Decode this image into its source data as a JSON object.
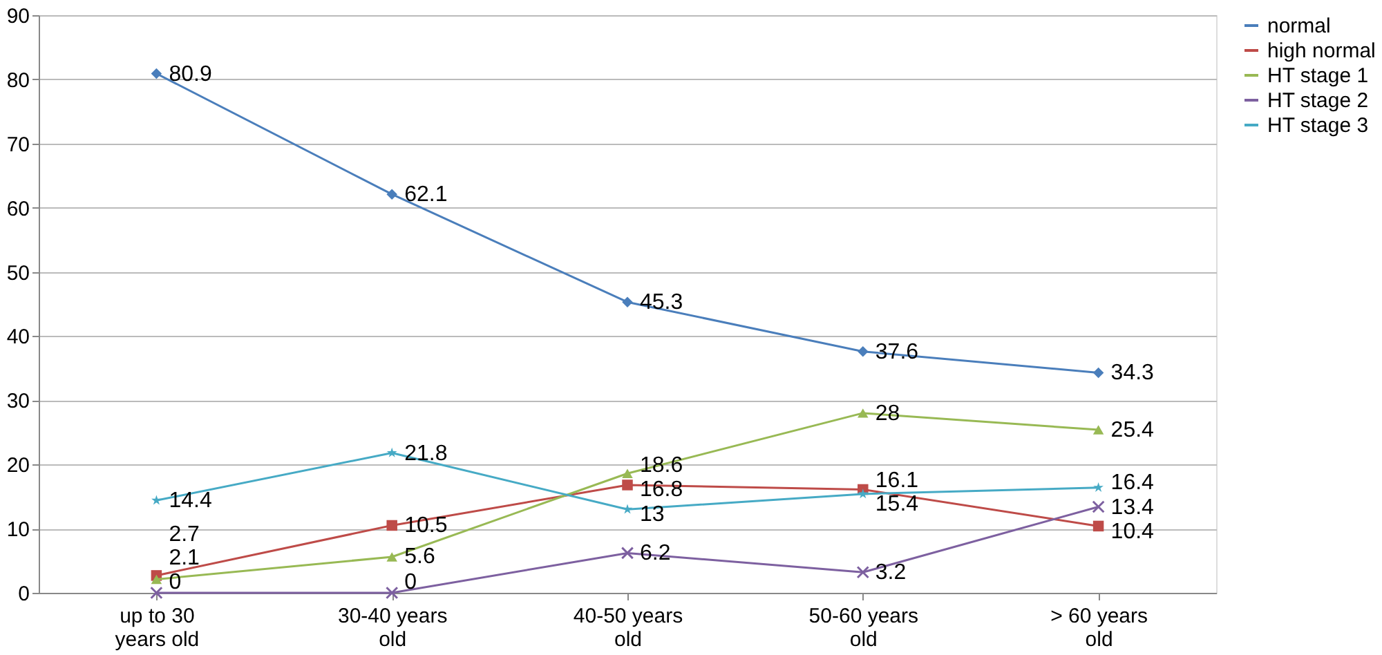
{
  "chart_data": {
    "type": "line",
    "categories": [
      "up to 30 years old",
      "30-40 years old",
      "40-50 years old",
      "50-60 years old",
      "> 60 years old"
    ],
    "series": [
      {
        "name": "normal",
        "color": "#4a7ebb",
        "marker": "diamond",
        "values": [
          80.9,
          62.1,
          45.3,
          37.6,
          34.3
        ]
      },
      {
        "name": "high normal",
        "color": "#be4b48",
        "marker": "square",
        "values": [
          2.7,
          10.5,
          16.8,
          16.1,
          10.4
        ]
      },
      {
        "name": "HT stage 1",
        "color": "#98b954",
        "marker": "triangle",
        "values": [
          2.1,
          5.6,
          18.6,
          28,
          25.4
        ]
      },
      {
        "name": "HT stage 2",
        "color": "#7d60a0",
        "marker": "cross",
        "values": [
          0,
          0,
          6.2,
          3.2,
          13.4
        ]
      },
      {
        "name": "HT stage 3",
        "color": "#46aac5",
        "marker": "star",
        "values": [
          14.4,
          21.8,
          13,
          15.4,
          16.4
        ]
      }
    ],
    "ylim": [
      0,
      90
    ],
    "yticks": [
      0,
      10,
      20,
      30,
      40,
      50,
      60,
      70,
      80,
      90
    ],
    "grid": "y",
    "legend": "right",
    "data_labels": true,
    "line_style": "solid"
  }
}
